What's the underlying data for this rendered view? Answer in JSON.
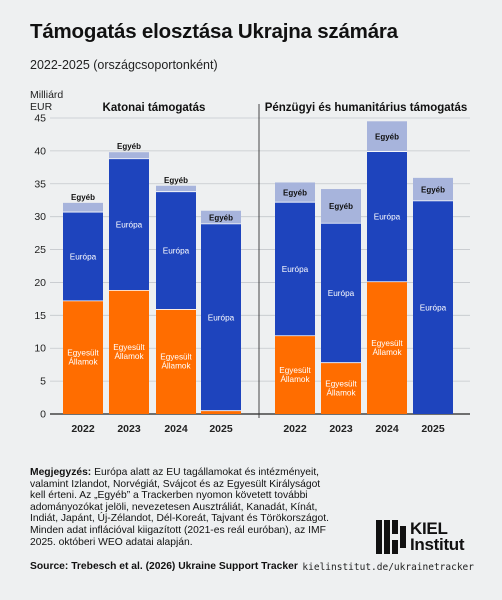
{
  "header": {
    "title": "Támogatás elosztása Ukrajna számára",
    "subtitle": "2022-2025 (országcsoportonként)"
  },
  "chart_data": {
    "type": "bar",
    "stacked": true,
    "yunit_lines": [
      "Milliárd",
      "EUR"
    ],
    "ylim": [
      0,
      45
    ],
    "yticks": [
      0,
      5,
      10,
      15,
      20,
      25,
      30,
      35,
      40,
      45
    ],
    "grid": true,
    "colors": {
      "us": "#ff6d00",
      "europe": "#1e44bd",
      "other": "#a7b4dc"
    },
    "label_us": "Egyesült Államok",
    "label_us_lines": [
      "Egyesült",
      "Államok"
    ],
    "label_europe": "Európa",
    "label_other": "Egyéb",
    "panels": [
      {
        "title": "Katonai támogatás",
        "categories": [
          "2022",
          "2023",
          "2024",
          "2025"
        ],
        "series": [
          {
            "name": "Egyesült Államok",
            "values": [
              17.2,
              18.8,
              15.9,
              0.5
            ]
          },
          {
            "name": "Európa",
            "values": [
              13.5,
              20.0,
              17.9,
              28.4
            ]
          },
          {
            "name": "Egyéb",
            "values": [
              1.4,
              1.0,
              0.9,
              2.0
            ]
          }
        ]
      },
      {
        "title": "Pénzügyi és humanitárius támogatás",
        "categories": [
          "2022",
          "2023",
          "2024",
          "2025"
        ],
        "series": [
          {
            "name": "Egyesült Államok",
            "values": [
              11.9,
              7.8,
              20.1,
              0
            ]
          },
          {
            "name": "Európa",
            "values": [
              20.3,
              21.2,
              19.8,
              32.4
            ]
          },
          {
            "name": "Egyéb",
            "values": [
              3.0,
              5.2,
              4.6,
              3.5
            ]
          }
        ]
      }
    ]
  },
  "note": {
    "label": "Megjegyzés:",
    "text": "Európa alatt az EU tagállamokat és intézményeit, valamint Izlandot, Norvégiát, Svájcot és az Egyesült Királyságot kell érteni. Az „Egyéb” a Trackerben nyomon követett további adományozókat jelöli, nevezetesen Ausztráliát, Kanadát, Kínát, Indiát, Japánt, Új-Zélandot, Dél-Koreát, Tajvant és Törökországot. Minden adat inflációval kiigazított (2021-es reál euróban), az IMF 2025. októberi WEO adatai alapján."
  },
  "footer": {
    "source": "Source: Trebesch et al. (2026) Ukraine Support Tracker",
    "url": "kielinstitut.de/ukrainetracker",
    "logo_line1": "KIEL",
    "logo_line2": "Institut"
  }
}
